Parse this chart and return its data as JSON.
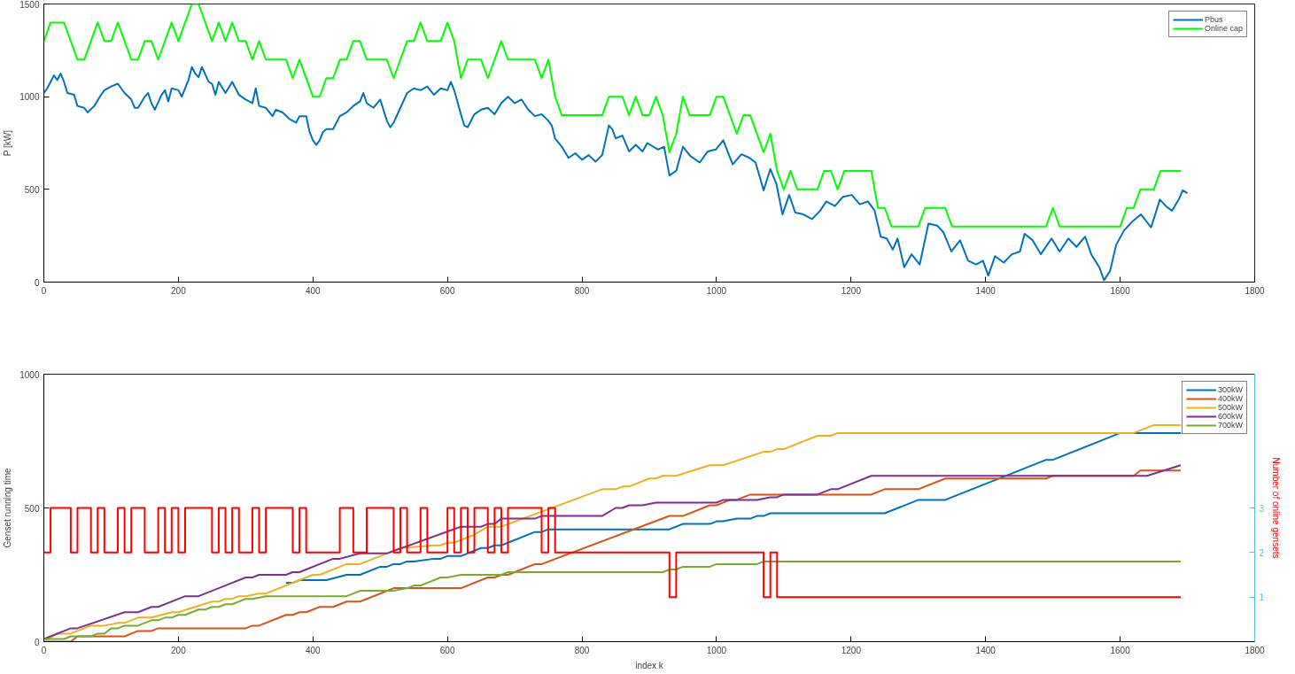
{
  "chart_data": [
    {
      "type": "line",
      "ylabel": "P [kW]",
      "xlim": [
        0,
        1800
      ],
      "ylim": [
        0,
        1500
      ],
      "xticks": [
        0,
        200,
        400,
        600,
        800,
        1000,
        1200,
        1400,
        1600,
        1800
      ],
      "yticks": [
        0,
        500,
        1000,
        1500
      ],
      "legend": "top right",
      "series": [
        {
          "name": "Pbus",
          "color": "#0072bd",
          "x": [
            0,
            5,
            15,
            20,
            25,
            30,
            35,
            45,
            50,
            60,
            65,
            75,
            85,
            90,
            100,
            110,
            120,
            130,
            135,
            140,
            150,
            155,
            160,
            165,
            175,
            180,
            185,
            190,
            200,
            205,
            215,
            220,
            225,
            230,
            235,
            245,
            250,
            255,
            260,
            270,
            280,
            290,
            300,
            310,
            315,
            320,
            330,
            340,
            345,
            355,
            365,
            375,
            380,
            390,
            395,
            400,
            405,
            410,
            415,
            420,
            430,
            440,
            450,
            460,
            470,
            475,
            480,
            490,
            500,
            510,
            515,
            520,
            530,
            540,
            550,
            560,
            570,
            580,
            590,
            600,
            605,
            610,
            620,
            625,
            630,
            640,
            650,
            660,
            670,
            680,
            690,
            700,
            710,
            720,
            730,
            740,
            750,
            755,
            760,
            770,
            780,
            790,
            800,
            810,
            820,
            830,
            840,
            845,
            850,
            860,
            870,
            880,
            890,
            897,
            913,
            922,
            930,
            940,
            950,
            961,
            975,
            987,
            999,
            1010,
            1024,
            1037,
            1049,
            1058,
            1070,
            1080,
            1089,
            1098,
            1108,
            1117,
            1129,
            1142,
            1154,
            1163,
            1176,
            1188,
            1201,
            1213,
            1225,
            1235,
            1244,
            1253,
            1262,
            1269,
            1279,
            1290,
            1302,
            1315,
            1328,
            1337,
            1349,
            1362,
            1374,
            1386,
            1396,
            1404,
            1414,
            1427,
            1439,
            1451,
            1458,
            1470,
            1482,
            1498,
            1510,
            1523,
            1535,
            1548,
            1557,
            1569,
            1576,
            1585,
            1594,
            1606,
            1619,
            1631,
            1646,
            1659,
            1668,
            1677,
            1687,
            1693,
            1700
          ],
          "values": [
            1020,
            1045,
            1115,
            1090,
            1125,
            1080,
            1020,
            1010,
            950,
            940,
            915,
            950,
            1010,
            1035,
            1055,
            1070,
            1020,
            985,
            940,
            940,
            1000,
            1020,
            965,
            930,
            1010,
            1035,
            975,
            1045,
            1035,
            1000,
            1090,
            1160,
            1125,
            1105,
            1160,
            1080,
            1070,
            1010,
            1080,
            1020,
            1080,
            1010,
            985,
            965,
            1045,
            950,
            940,
            895,
            930,
            915,
            880,
            860,
            895,
            895,
            810,
            765,
            740,
            765,
            810,
            825,
            825,
            895,
            915,
            950,
            975,
            1020,
            965,
            940,
            985,
            870,
            835,
            860,
            940,
            1020,
            1045,
            1035,
            1055,
            1010,
            1045,
            1035,
            1080,
            1035,
            905,
            845,
            835,
            905,
            930,
            940,
            905,
            965,
            1000,
            965,
            985,
            930,
            895,
            905,
            870,
            845,
            775,
            730,
            670,
            695,
            660,
            685,
            650,
            685,
            845,
            825,
            775,
            790,
            705,
            740,
            705,
            750,
            715,
            730,
            575,
            600,
            730,
            680,
            645,
            705,
            715,
            765,
            635,
            690,
            670,
            645,
            495,
            610,
            530,
            365,
            470,
            375,
            365,
            340,
            385,
            435,
            410,
            460,
            470,
            420,
            435,
            385,
            245,
            235,
            175,
            235,
            80,
            150,
            95,
            315,
            305,
            270,
            165,
            225,
            115,
            95,
            115,
            35,
            140,
            105,
            150,
            165,
            260,
            225,
            150,
            235,
            165,
            235,
            190,
            245,
            150,
            80,
            10,
            60,
            200,
            280,
            330,
            365,
            295,
            445,
            410,
            385,
            445,
            495,
            480
          ]
        },
        {
          "name": "Online cap",
          "color": "#00ff00",
          "x": [
            0,
            10,
            30,
            50,
            60,
            80,
            90,
            100,
            110,
            130,
            140,
            150,
            160,
            170,
            190,
            200,
            220,
            230,
            250,
            260,
            270,
            280,
            290,
            300,
            310,
            320,
            330,
            360,
            370,
            380,
            400,
            410,
            420,
            430,
            440,
            450,
            460,
            470,
            480,
            510,
            520,
            540,
            550,
            560,
            570,
            590,
            600,
            610,
            620,
            630,
            650,
            660,
            680,
            690,
            730,
            740,
            750,
            760,
            770,
            830,
            840,
            860,
            870,
            880,
            890,
            900,
            910,
            920,
            930,
            940,
            950,
            960,
            990,
            1000,
            1010,
            1030,
            1040,
            1050,
            1070,
            1080,
            1090,
            1100,
            1110,
            1120,
            1150,
            1160,
            1170,
            1180,
            1190,
            1230,
            1240,
            1250,
            1260,
            1300,
            1310,
            1340,
            1350,
            1490,
            1500,
            1510,
            1600,
            1610,
            1620,
            1630,
            1650,
            1660,
            1690
          ],
          "values": [
            1300,
            1400,
            1400,
            1200,
            1200,
            1400,
            1300,
            1300,
            1400,
            1200,
            1200,
            1300,
            1300,
            1200,
            1400,
            1300,
            1500,
            1500,
            1300,
            1400,
            1300,
            1400,
            1300,
            1300,
            1200,
            1300,
            1200,
            1200,
            1100,
            1200,
            1000,
            1000,
            1100,
            1100,
            1200,
            1200,
            1300,
            1300,
            1200,
            1200,
            1100,
            1300,
            1300,
            1400,
            1300,
            1300,
            1400,
            1300,
            1100,
            1200,
            1200,
            1100,
            1300,
            1200,
            1200,
            1100,
            1200,
            1000,
            900,
            900,
            1000,
            1000,
            900,
            1000,
            900,
            900,
            1000,
            900,
            700,
            800,
            1000,
            900,
            900,
            1000,
            1000,
            800,
            900,
            900,
            700,
            800,
            600,
            500,
            600,
            500,
            500,
            600,
            600,
            500,
            600,
            600,
            400,
            400,
            300,
            300,
            400,
            400,
            300,
            300,
            400,
            300,
            300,
            400,
            400,
            500,
            500,
            600,
            600
          ]
        }
      ]
    },
    {
      "type": "line",
      "xlabel": "index k",
      "ylabel": "Genset running time",
      "y2label": "Number of online gensets",
      "xlim": [
        0,
        1800
      ],
      "ylim": [
        0,
        1000
      ],
      "xticks": [
        0,
        200,
        400,
        600,
        800,
        1000,
        1200,
        1400,
        1600,
        1800
      ],
      "yticks": [
        0,
        500,
        1000
      ],
      "y2lim": [
        0,
        6
      ],
      "y2ticks": [
        1,
        2,
        3
      ],
      "legend": "top right",
      "series": [
        {
          "name": "300kW",
          "color": "#0072bd",
          "x": [
            360,
            370,
            380,
            420,
            450,
            470,
            500,
            510,
            520,
            530,
            540,
            550,
            580,
            590,
            600,
            620,
            650,
            660,
            670,
            680,
            690,
            730,
            740,
            750,
            930,
            950,
            990,
            1000,
            1010,
            1030,
            1050,
            1060,
            1070,
            1080,
            1250,
            1300,
            1340,
            1490,
            1500,
            1600,
            1690
          ],
          "values": [
            220,
            220,
            230,
            230,
            250,
            250,
            280,
            280,
            290,
            290,
            300,
            300,
            310,
            310,
            320,
            320,
            350,
            350,
            360,
            360,
            370,
            410,
            410,
            420,
            420,
            440,
            440,
            450,
            450,
            460,
            460,
            470,
            470,
            480,
            480,
            530,
            530,
            680,
            680,
            780,
            780
          ]
        },
        {
          "name": "400kW",
          "color": "#d95319",
          "x": [
            0,
            40,
            50,
            120,
            140,
            160,
            170,
            300,
            310,
            320,
            360,
            370,
            380,
            390,
            410,
            430,
            450,
            470,
            520,
            620,
            660,
            670,
            680,
            690,
            730,
            740,
            930,
            950,
            990,
            1000,
            1020,
            1030,
            1050,
            1230,
            1250,
            1300,
            1340,
            1490,
            1500,
            1620,
            1630,
            1690
          ],
          "values": [
            0,
            0,
            20,
            20,
            40,
            40,
            50,
            50,
            60,
            60,
            100,
            100,
            110,
            110,
            130,
            130,
            150,
            150,
            200,
            200,
            240,
            240,
            250,
            250,
            290,
            290,
            470,
            470,
            510,
            510,
            530,
            530,
            550,
            550,
            570,
            570,
            610,
            610,
            620,
            620,
            640,
            640
          ]
        },
        {
          "name": "500kW",
          "color": "#edb120",
          "x": [
            0,
            20,
            40,
            70,
            90,
            110,
            120,
            140,
            160,
            190,
            200,
            250,
            260,
            270,
            280,
            290,
            300,
            320,
            330,
            400,
            410,
            450,
            470,
            520,
            530,
            580,
            590,
            600,
            610,
            640,
            660,
            680,
            830,
            850,
            860,
            870,
            900,
            910,
            920,
            940,
            990,
            1010,
            1070,
            1080,
            1090,
            1100,
            1150,
            1170,
            1180,
            1620,
            1650,
            1690
          ],
          "values": [
            0,
            30,
            30,
            60,
            60,
            70,
            70,
            90,
            90,
            110,
            110,
            150,
            150,
            160,
            160,
            170,
            170,
            180,
            180,
            250,
            250,
            290,
            290,
            340,
            350,
            360,
            360,
            370,
            370,
            400,
            430,
            430,
            570,
            570,
            580,
            580,
            610,
            610,
            620,
            620,
            660,
            660,
            710,
            710,
            720,
            720,
            770,
            770,
            780,
            780,
            810,
            810
          ]
        },
        {
          "name": "600kW",
          "color": "#7e2f8e",
          "x": [
            0,
            40,
            50,
            120,
            140,
            160,
            170,
            210,
            230,
            300,
            310,
            320,
            360,
            370,
            380,
            430,
            440,
            470,
            510,
            620,
            650,
            660,
            670,
            680,
            730,
            740,
            830,
            850,
            860,
            870,
            890,
            910,
            1000,
            1010,
            1060,
            1080,
            1090,
            1100,
            1150,
            1170,
            1180,
            1230,
            1640,
            1690
          ],
          "values": [
            10,
            50,
            50,
            110,
            110,
            130,
            130,
            170,
            170,
            240,
            240,
            250,
            250,
            260,
            260,
            310,
            310,
            330,
            330,
            430,
            430,
            440,
            440,
            460,
            460,
            470,
            470,
            500,
            500,
            510,
            510,
            520,
            520,
            530,
            530,
            540,
            540,
            550,
            550,
            570,
            570,
            620,
            620,
            660
          ]
        },
        {
          "name": "700kW",
          "color": "#77ac30",
          "x": [
            0,
            30,
            40,
            70,
            80,
            90,
            100,
            110,
            120,
            140,
            160,
            170,
            180,
            190,
            200,
            210,
            230,
            240,
            250,
            260,
            270,
            280,
            300,
            310,
            330,
            450,
            470,
            520,
            540,
            550,
            560,
            590,
            600,
            620,
            680,
            690,
            920,
            930,
            940,
            950,
            990,
            1000,
            1060,
            1070,
            1690
          ],
          "values": [
            10,
            10,
            20,
            20,
            30,
            30,
            50,
            50,
            60,
            60,
            80,
            80,
            90,
            90,
            100,
            100,
            120,
            120,
            130,
            130,
            140,
            140,
            160,
            160,
            170,
            170,
            190,
            190,
            200,
            210,
            210,
            240,
            240,
            250,
            250,
            260,
            260,
            270,
            270,
            280,
            280,
            290,
            290,
            300,
            300
          ]
        },
        {
          "type": "step",
          "axis": "y2",
          "color": "#ff0000",
          "x": [
            0,
            10,
            40,
            50,
            70,
            80,
            90,
            110,
            120,
            130,
            150,
            170,
            180,
            190,
            200,
            210,
            250,
            260,
            270,
            280,
            290,
            310,
            320,
            330,
            370,
            380,
            390,
            440,
            460,
            480,
            520,
            530,
            540,
            560,
            570,
            600,
            610,
            620,
            630,
            640,
            660,
            670,
            680,
            690,
            740,
            750,
            760,
            930,
            940,
            1070,
            1080,
            1090,
            1690
          ],
          "values": [
            2,
            3,
            2,
            3,
            2,
            3,
            2,
            3,
            2,
            3,
            2,
            3,
            2,
            3,
            2,
            3,
            2,
            3,
            2,
            3,
            2,
            3,
            2,
            3,
            2,
            3,
            2,
            3,
            2,
            3,
            2,
            3,
            2,
            3,
            2,
            3,
            2,
            3,
            2,
            3,
            2,
            3,
            2,
            3,
            2,
            3,
            2,
            1,
            2,
            1,
            2,
            1,
            1
          ]
        }
      ]
    }
  ]
}
